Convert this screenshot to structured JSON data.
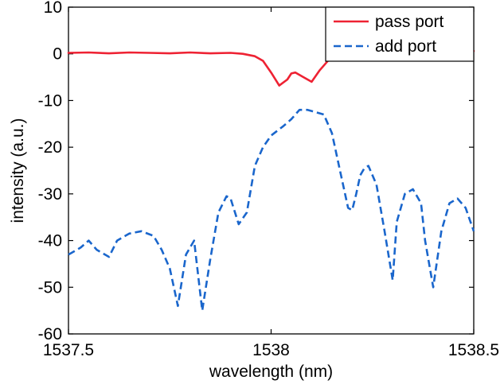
{
  "chart_data": {
    "type": "line",
    "xlabel": "wavelength (nm)",
    "ylabel": "intensity (a.u.)",
    "xlim": [
      1537.5,
      1538.5
    ],
    "ylim": [
      -60,
      10
    ],
    "xticks": [
      1537.5,
      1538,
      1538.5
    ],
    "xtick_labels": [
      "1537.5",
      "1538",
      "1538.5"
    ],
    "yticks": [
      10,
      0,
      -10,
      -20,
      -30,
      -40,
      -50,
      -60
    ],
    "ytick_labels": [
      "10",
      "0",
      "-10",
      "-20",
      "-30",
      "-40",
      "-50",
      "-60"
    ],
    "grid": false,
    "legend_position": "top-right",
    "series": [
      {
        "name": "pass port",
        "color": "#ee2233",
        "style": "solid",
        "x": [
          1537.5,
          1537.55,
          1537.6,
          1537.65,
          1537.7,
          1537.75,
          1537.8,
          1537.85,
          1537.9,
          1537.93,
          1537.96,
          1537.98,
          1538.0,
          1538.02,
          1538.04,
          1538.05,
          1538.06,
          1538.08,
          1538.1,
          1538.12,
          1538.15,
          1538.2,
          1538.25,
          1538.3,
          1538.35,
          1538.4,
          1538.45,
          1538.5
        ],
        "y": [
          0.2,
          0.3,
          0.1,
          0.3,
          0.2,
          0.1,
          0.3,
          0.1,
          0.2,
          0.0,
          -0.5,
          -1.5,
          -4.0,
          -6.8,
          -5.5,
          -4.2,
          -4.0,
          -5.0,
          -6.0,
          -3.5,
          -0.5,
          0.2,
          0.0,
          0.2,
          0.3,
          0.1,
          0.4,
          0.6
        ]
      },
      {
        "name": "add port",
        "color": "#1a66cc",
        "style": "dashed",
        "x": [
          1537.5,
          1537.53,
          1537.55,
          1537.57,
          1537.6,
          1537.62,
          1537.65,
          1537.68,
          1537.71,
          1537.73,
          1537.75,
          1537.77,
          1537.79,
          1537.81,
          1537.83,
          1537.85,
          1537.87,
          1537.89,
          1537.9,
          1537.92,
          1537.94,
          1537.96,
          1537.98,
          1538.0,
          1538.03,
          1538.05,
          1538.07,
          1538.09,
          1538.11,
          1538.13,
          1538.15,
          1538.17,
          1538.19,
          1538.2,
          1538.21,
          1538.22,
          1538.23,
          1538.24,
          1538.26,
          1538.28,
          1538.3,
          1538.31,
          1538.33,
          1538.35,
          1538.37,
          1538.38,
          1538.4,
          1538.42,
          1538.44,
          1538.46,
          1538.48,
          1538.5
        ],
        "y": [
          -43.0,
          -41.5,
          -40.0,
          -42.0,
          -43.5,
          -40.0,
          -38.5,
          -38.0,
          -39.0,
          -42.0,
          -46.0,
          -54.0,
          -43.0,
          -40.0,
          -55.0,
          -44.0,
          -34.0,
          -30.5,
          -31.0,
          -36.5,
          -34.0,
          -24.0,
          -20.0,
          -17.5,
          -15.5,
          -14.0,
          -12.0,
          -12.0,
          -12.5,
          -13.0,
          -17.0,
          -25.0,
          -33.0,
          -33.5,
          -30.0,
          -26.0,
          -24.5,
          -24.0,
          -28.0,
          -38.0,
          -48.5,
          -36.0,
          -30.0,
          -29.0,
          -32.0,
          -40.0,
          -50.0,
          -38.0,
          -32.0,
          -31.0,
          -33.0,
          -38.0
        ]
      }
    ]
  }
}
